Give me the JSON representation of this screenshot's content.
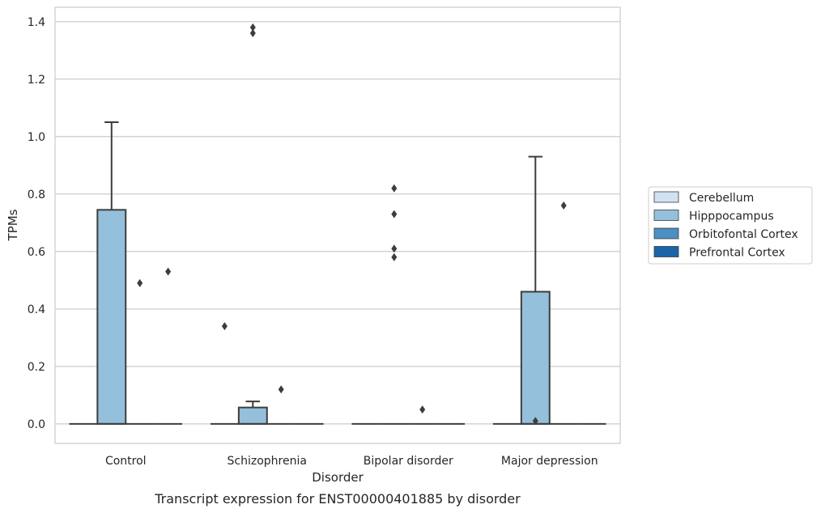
{
  "caption": "Transcript expression for ENST00000401885 by disorder",
  "chart_data": {
    "type": "box",
    "xlabel": "Disorder",
    "ylabel": "TPMs",
    "categories": [
      "Control",
      "Schizophrenia",
      "Bipolar disorder",
      "Major depression"
    ],
    "ylim": [
      -0.068,
      1.45
    ],
    "yticks": [
      0.0,
      0.2,
      0.4,
      0.6,
      0.8,
      1.0,
      1.2,
      1.4
    ],
    "ytick_labels": [
      "0.0",
      "0.2",
      "0.4",
      "0.6",
      "0.8",
      "1.0",
      "1.2",
      "1.4"
    ],
    "grid": "horizontal",
    "legend_position": "outside-right",
    "series": [
      {
        "name": "Cerebellum",
        "color": "#d0e1f2",
        "boxes": [
          {
            "q1": 0,
            "median": 0,
            "q3": 0,
            "whisker_low": 0,
            "whisker_high": 0,
            "outliers": []
          },
          {
            "q1": 0,
            "median": 0,
            "q3": 0,
            "whisker_low": 0,
            "whisker_high": 0,
            "outliers": [
              0.34
            ]
          },
          {
            "q1": 0,
            "median": 0,
            "q3": 0,
            "whisker_low": 0,
            "whisker_high": 0,
            "outliers": []
          },
          {
            "q1": 0,
            "median": 0,
            "q3": 0,
            "whisker_low": 0,
            "whisker_high": 0,
            "outliers": []
          }
        ]
      },
      {
        "name": "Hipppocampus",
        "color": "#94c0dc",
        "boxes": [
          {
            "q1": 0,
            "median": 0,
            "q3": 0.745,
            "whisker_low": 0,
            "whisker_high": 1.05,
            "outliers": []
          },
          {
            "q1": 0,
            "median": 0,
            "q3": 0.057,
            "whisker_low": 0,
            "whisker_high": 0.078,
            "outliers": [
              1.36,
              1.38
            ]
          },
          {
            "q1": 0,
            "median": 0,
            "q3": 0,
            "whisker_low": 0,
            "whisker_high": 0,
            "outliers": [
              0.58,
              0.61,
              0.73,
              0.82
            ]
          },
          {
            "q1": 0,
            "median": 0,
            "q3": 0.46,
            "whisker_low": 0,
            "whisker_high": 0.93,
            "outliers": [
              0.01
            ]
          }
        ]
      },
      {
        "name": "Orbitofontal Cortex",
        "color": "#4a90c2",
        "boxes": [
          {
            "q1": 0,
            "median": 0,
            "q3": 0,
            "whisker_low": 0,
            "whisker_high": 0,
            "outliers": [
              0.49
            ]
          },
          {
            "q1": 0,
            "median": 0,
            "q3": 0,
            "whisker_low": 0,
            "whisker_high": 0,
            "outliers": [
              0.12
            ]
          },
          {
            "q1": 0,
            "median": 0,
            "q3": 0,
            "whisker_low": 0,
            "whisker_high": 0,
            "outliers": [
              0.05
            ]
          },
          {
            "q1": 0,
            "median": 0,
            "q3": 0,
            "whisker_low": 0,
            "whisker_high": 0,
            "outliers": [
              0.76
            ]
          }
        ]
      },
      {
        "name": "Prefrontal Cortex",
        "color": "#1c64a8",
        "boxes": [
          {
            "q1": 0,
            "median": 0,
            "q3": 0,
            "whisker_low": 0,
            "whisker_high": 0,
            "outliers": [
              0.53
            ]
          },
          {
            "q1": 0,
            "median": 0,
            "q3": 0,
            "whisker_low": 0,
            "whisker_high": 0,
            "outliers": []
          },
          {
            "q1": 0,
            "median": 0,
            "q3": 0,
            "whisker_low": 0,
            "whisker_high": 0,
            "outliers": []
          },
          {
            "q1": 0,
            "median": 0,
            "q3": 0,
            "whisker_low": 0,
            "whisker_high": 0,
            "outliers": []
          }
        ]
      }
    ]
  }
}
